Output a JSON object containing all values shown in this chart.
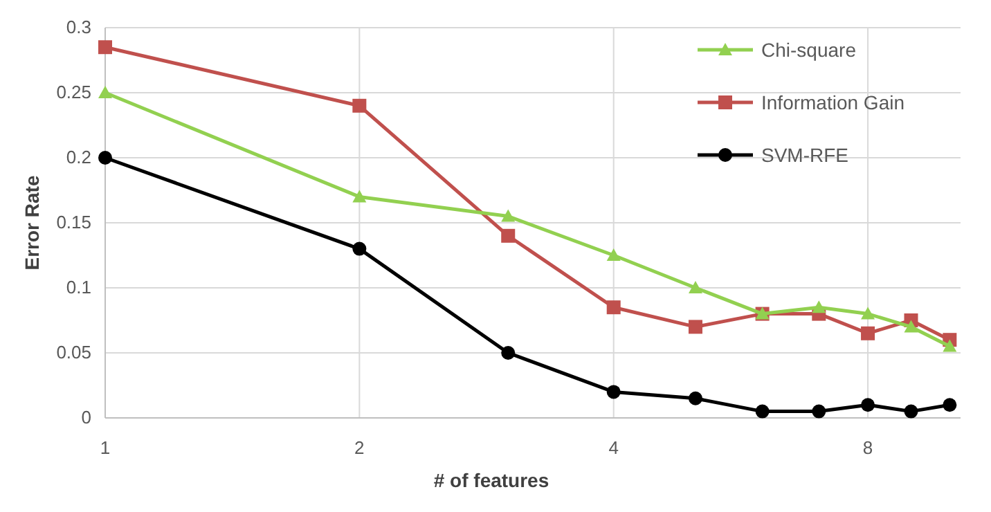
{
  "chart_data": {
    "type": "line",
    "xlabel": "# of features",
    "ylabel": "Error Rate",
    "log": "x",
    "x": [
      1,
      2,
      3,
      4,
      5,
      6,
      7,
      8,
      9,
      10
    ],
    "xlim": [
      1,
      10.3
    ],
    "xticks": [
      1,
      2,
      4,
      8
    ],
    "ylim": [
      0,
      0.3
    ],
    "yticks": [
      0,
      0.05,
      0.1,
      0.15,
      0.2,
      0.25,
      0.3
    ],
    "grid": true,
    "legend": "top right",
    "series": [
      {
        "name": "Chi-square",
        "color": "#92d050",
        "marker": "triangle",
        "values": [
          0.25,
          0.17,
          0.155,
          0.125,
          0.1,
          0.08,
          0.085,
          0.08,
          0.07,
          0.055
        ]
      },
      {
        "name": "Information Gain",
        "color": "#c0504d",
        "marker": "square",
        "values": [
          0.285,
          0.24,
          0.14,
          0.085,
          0.07,
          0.08,
          0.08,
          0.065,
          0.075,
          0.06
        ]
      },
      {
        "name": "SVM-RFE",
        "color": "#000000",
        "marker": "circle",
        "values": [
          0.2,
          0.13,
          0.05,
          0.02,
          0.015,
          0.005,
          0.005,
          0.01,
          0.005,
          0.01
        ]
      }
    ]
  }
}
